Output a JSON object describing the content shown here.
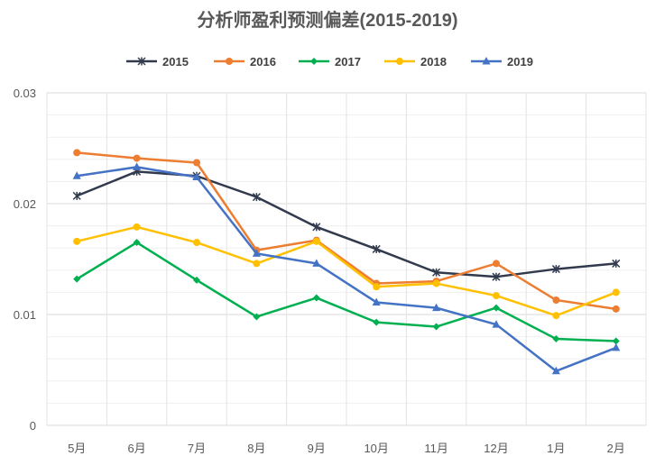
{
  "chart_data": {
    "type": "line",
    "title": "分析师盈利预测偏差(2015-2019)",
    "xlabel": "",
    "ylabel": "",
    "categories": [
      "5月",
      "6月",
      "7月",
      "8月",
      "9月",
      "10月",
      "11月",
      "12月",
      "1月",
      "2月"
    ],
    "ylim": [
      0,
      0.03
    ],
    "yticks": [
      "0",
      "0.01",
      "0.02",
      "0.03"
    ],
    "grid": true,
    "legend_position": "top",
    "series": [
      {
        "name": "2015",
        "color": "#323a4e",
        "marker": "star",
        "values": [
          0.0207,
          0.0229,
          0.0225,
          0.0206,
          0.0179,
          0.0159,
          0.0138,
          0.0134,
          0.0141,
          0.0146
        ]
      },
      {
        "name": "2016",
        "color": "#ed7d31",
        "marker": "circle",
        "values": [
          0.0246,
          0.0241,
          0.0237,
          0.0158,
          0.0167,
          0.0128,
          0.013,
          0.0146,
          0.0113,
          0.0105
        ]
      },
      {
        "name": "2017",
        "color": "#00b050",
        "marker": "diamond",
        "values": [
          0.0132,
          0.0165,
          0.0131,
          0.0098,
          0.0115,
          0.0093,
          0.0089,
          0.0106,
          0.0078,
          0.0076
        ]
      },
      {
        "name": "2018",
        "color": "#ffc000",
        "marker": "circle",
        "values": [
          0.0166,
          0.0179,
          0.0165,
          0.0146,
          0.0166,
          0.0125,
          0.0128,
          0.0117,
          0.0099,
          0.012
        ]
      },
      {
        "name": "2019",
        "color": "#4472c4",
        "marker": "triangle",
        "values": [
          0.0225,
          0.0233,
          0.0224,
          0.0155,
          0.0146,
          0.0111,
          0.0106,
          0.0091,
          0.0049,
          0.007
        ]
      }
    ]
  }
}
